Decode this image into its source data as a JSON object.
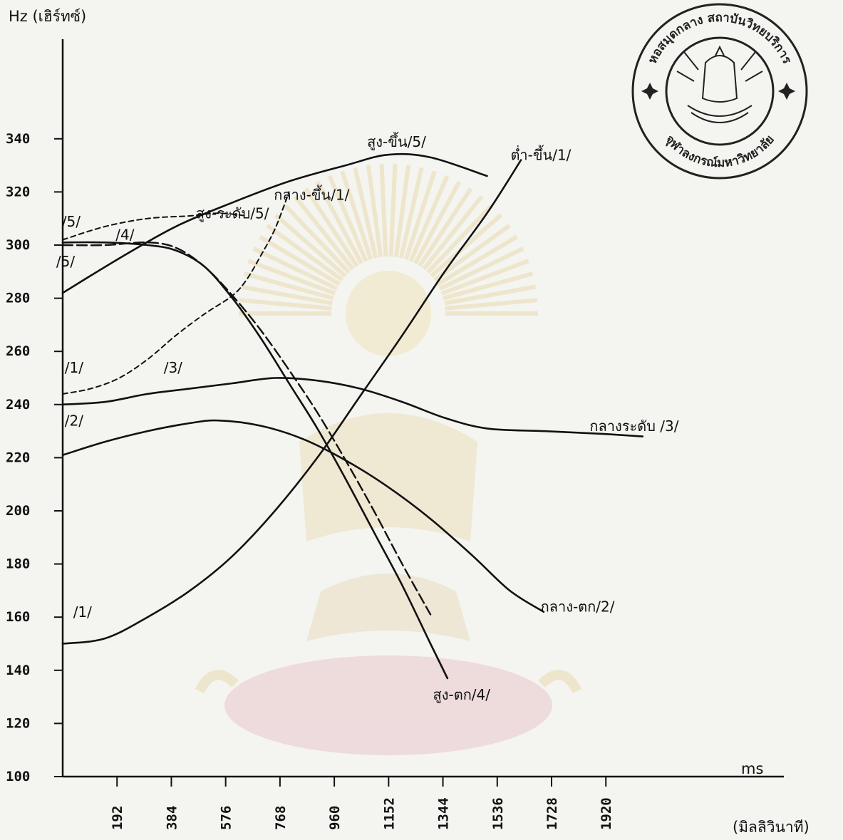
{
  "chart_data": {
    "type": "line",
    "ylabel": "Hz (เฮิร์ทซ์)",
    "xlabel": "ms",
    "xlabel_note": "(มิลลิวินาที)",
    "x_ticks": [
      192,
      384,
      576,
      768,
      960,
      1152,
      1344,
      1536,
      1728,
      1920
    ],
    "y_ticks": [
      100,
      120,
      140,
      160,
      180,
      200,
      220,
      240,
      260,
      280,
      300,
      320,
      340
    ],
    "xlim": [
      0,
      2000
    ],
    "ylim": [
      100,
      350
    ],
    "grid": false,
    "series": [
      {
        "name": "สูง-ขึ้น/5/",
        "style": "solid",
        "x": [
          0,
          200,
          400,
          600,
          800,
          1000,
          1150,
          1300,
          1500
        ],
        "y": [
          282,
          295,
          307,
          316,
          324,
          330,
          334,
          333,
          326
        ]
      },
      {
        "name": "ต่ำ-ขึ้น/1/",
        "style": "solid",
        "x": [
          0,
          150,
          300,
          450,
          600,
          750,
          900,
          1050,
          1200,
          1350,
          1500,
          1620
        ],
        "y": [
          150,
          152,
          160,
          170,
          183,
          200,
          220,
          243,
          266,
          290,
          312,
          332
        ]
      },
      {
        "name": "กลาง-ขึ้น/1/",
        "style": "dash",
        "x": [
          0,
          100,
          200,
          300,
          400,
          500,
          600,
          650,
          700,
          750,
          800
        ],
        "y": [
          244,
          246,
          250,
          257,
          266,
          274,
          281,
          287,
          296,
          306,
          320
        ]
      },
      {
        "name": "สูง-ระดับ/5/",
        "style": "dash",
        "x": [
          0,
          150,
          300,
          450,
          550,
          650
        ],
        "y": [
          302,
          307,
          310,
          311,
          312,
          311
        ]
      },
      {
        "name": "สูง-ตก/4/",
        "style": "solid",
        "x": [
          0,
          150,
          300,
          400,
          500,
          600,
          700,
          800,
          900,
          1000,
          1100,
          1200,
          1300,
          1360
        ],
        "y": [
          301,
          301,
          300,
          298,
          292,
          280,
          265,
          248,
          231,
          212,
          192,
          172,
          150,
          137
        ]
      },
      {
        "name": "สูง-ตก/4/ (dashed)",
        "style": "dashlong",
        "x": [
          0,
          150,
          300,
          400,
          500,
          600,
          700,
          800,
          900,
          1000,
          1100,
          1200,
          1300
        ],
        "y": [
          300,
          300,
          301,
          299,
          292,
          281,
          268,
          253,
          237,
          219,
          200,
          180,
          161
        ]
      },
      {
        "name": "กลางระดับ /3/",
        "style": "solid",
        "x": [
          0,
          150,
          300,
          450,
          600,
          750,
          900,
          1050,
          1200,
          1350,
          1500,
          1700,
          1900,
          2050
        ],
        "y": [
          240,
          241,
          244,
          246,
          248,
          250,
          249,
          246,
          241,
          235,
          231,
          230,
          229,
          228
        ]
      },
      {
        "name": "กลาง-ตก/2/",
        "style": "solid",
        "x": [
          0,
          150,
          300,
          450,
          550,
          700,
          850,
          1000,
          1150,
          1300,
          1450,
          1580,
          1700
        ],
        "y": [
          221,
          226,
          230,
          233,
          234,
          232,
          227,
          219,
          209,
          197,
          183,
          170,
          162
        ]
      }
    ],
    "annotations": [
      {
        "text": "สูง-ขึ้น/5/",
        "x": 1180,
        "y": 337
      },
      {
        "text": "ต่ำ-ขึ้น/1/",
        "x": 1690,
        "y": 332
      },
      {
        "text": "กลาง-ขึ้น/1/",
        "x": 880,
        "y": 317
      },
      {
        "text": "สูง-ระดับ/5/",
        "x": 600,
        "y": 310
      },
      {
        "text": "/5/",
        "x": 30,
        "y": 307
      },
      {
        "text": "/4/",
        "x": 220,
        "y": 302
      },
      {
        "text": "/5/",
        "x": 10,
        "y": 292
      },
      {
        "text": "/1/",
        "x": 40,
        "y": 252
      },
      {
        "text": "/3/",
        "x": 390,
        "y": 252
      },
      {
        "text": "กลางระดับ /3/",
        "x": 2020,
        "y": 230
      },
      {
        "text": "/2/",
        "x": 40,
        "y": 232
      },
      {
        "text": "กลาง-ตก/2/",
        "x": 1820,
        "y": 162
      },
      {
        "text": "/1/",
        "x": 70,
        "y": 160
      },
      {
        "text": "สูง-ตก/4/",
        "x": 1410,
        "y": 129
      }
    ]
  },
  "seal": {
    "text_top": "หอสมุดกลาง สถาบันวิทยบริการ",
    "text_bottom": "จุฬาลงกรณ์มหาวิทยาลัย"
  }
}
